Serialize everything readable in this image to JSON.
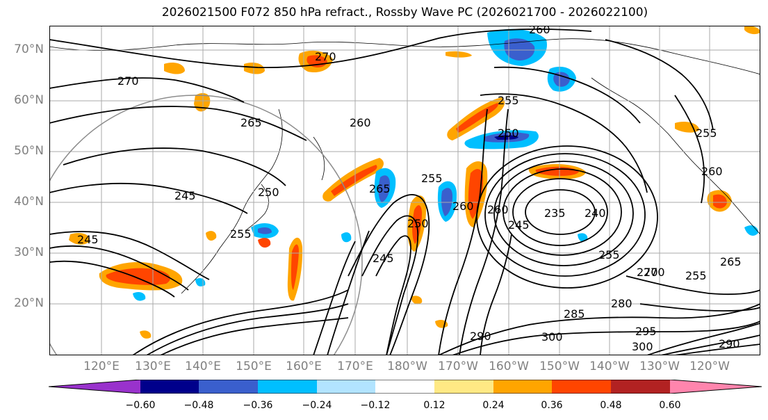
{
  "title": "2026021500 F072 850 hPa refract., Rossby Wave PC (2026021700 - 2026022100)",
  "lat_labels": [
    "70°N",
    "60°N",
    "50°N",
    "40°N",
    "30°N",
    "20°N"
  ],
  "lon_labels": [
    "120°E",
    "130°E",
    "140°E",
    "150°E",
    "160°E",
    "170°E",
    "180°W",
    "170°W",
    "160°W",
    "150°W",
    "140°W",
    "130°W",
    "120°W"
  ],
  "contour_labels": [
    "260",
    "270",
    "270",
    "265",
    "260",
    "255",
    "250",
    "255",
    "265",
    "250",
    "245",
    "250",
    "245",
    "255",
    "270",
    "260",
    "260",
    "245",
    "235",
    "240",
    "245",
    "255",
    "270",
    "280",
    "285",
    "290",
    "300",
    "295",
    "300",
    "290",
    "255",
    "265",
    "255",
    "260"
  ],
  "colorbar": {
    "colors": [
      "#9932cc",
      "#00008b",
      "#3a5fcd",
      "#00bfff",
      "#b2e4ff",
      "#ffffff",
      "#ffe984",
      "#ffa500",
      "#ff4500",
      "#b22222",
      "#ff85ad"
    ],
    "ticks": [
      "−0.60",
      "−0.48",
      "−0.36",
      "−0.24",
      "−0.12",
      "0.12",
      "0.24",
      "0.36",
      "0.48",
      "0.60"
    ]
  },
  "colors": {
    "axis_label": "#808080",
    "grid": "#aaaaaa",
    "contour": "#000000"
  }
}
